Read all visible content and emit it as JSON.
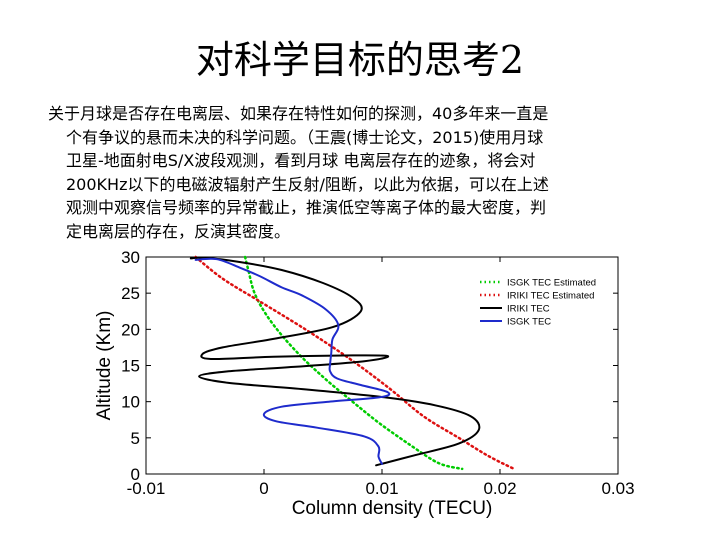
{
  "slide": {
    "title": "对科学目标的思考2",
    "paragraph_lines": [
      "关于月球是否存在电离层、如果存在特性如何的探测，40多年来一直是",
      "个有争议的悬而未决的科学问题。（王震(博士论文，2015)使用月球",
      "卫星-地面射电S/X波段观测，看到月球 电离层存在的迹象，将会对",
      "200KHz以下的电磁波辐射产生反射/阻断，以此为依据，可以在上述",
      "观测中观察信号频率的异常截止，推演低空等离子体的最大密度，判",
      "定电离层的存在，反演其密度。"
    ]
  },
  "chart_data": {
    "type": "line",
    "xlabel": "Column density (TECU)",
    "ylabel": "Altitude (Km)",
    "xlim": [
      -0.01,
      0.03
    ],
    "ylim": [
      0,
      30
    ],
    "xticks": [
      "-0.01",
      "0",
      "0.01",
      "0.02",
      "0.03"
    ],
    "yticks": [
      "0",
      "5",
      "10",
      "15",
      "20",
      "25",
      "30"
    ],
    "legend_position": "top-right",
    "series": [
      {
        "name": "ISGK TEC Estimated",
        "color": "#00cc00",
        "style": "dotted",
        "points": [
          [
            -0.0016,
            30
          ],
          [
            -0.0013,
            28
          ],
          [
            -0.0008,
            25
          ],
          [
            0.0002,
            22
          ],
          [
            0.0016,
            19
          ],
          [
            0.0033,
            16
          ],
          [
            0.0053,
            13
          ],
          [
            0.0075,
            10
          ],
          [
            0.0098,
            7
          ],
          [
            0.0124,
            4
          ],
          [
            0.0148,
            1.5
          ],
          [
            0.0168,
            0.7
          ]
        ]
      },
      {
        "name": "IRIKI TEC Estimated",
        "color": "#dd1111",
        "style": "dotted",
        "points": [
          [
            -0.0058,
            30
          ],
          [
            -0.0035,
            27
          ],
          [
            -0.0005,
            24
          ],
          [
            0.0035,
            20
          ],
          [
            0.0072,
            16
          ],
          [
            0.0105,
            12
          ],
          [
            0.0135,
            8
          ],
          [
            0.0165,
            5
          ],
          [
            0.019,
            2.5
          ],
          [
            0.0212,
            0.7
          ]
        ]
      },
      {
        "name": "IRIKI TEC",
        "color": "#000000",
        "style": "solid",
        "points": [
          [
            -0.0062,
            29.8
          ],
          [
            -0.005,
            29.9
          ],
          [
            -0.002,
            29.3
          ],
          [
            0.0015,
            28.2
          ],
          [
            0.005,
            26.4
          ],
          [
            0.0075,
            24.4
          ],
          [
            0.0082,
            22.5
          ],
          [
            0.0058,
            20.3
          ],
          [
            0.0005,
            18.6
          ],
          [
            -0.0035,
            17.5
          ],
          [
            -0.0052,
            16.6
          ],
          [
            -0.0045,
            15.9
          ],
          [
            0.0008,
            16.2
          ],
          [
            0.0075,
            16.4
          ],
          [
            0.0105,
            16.3
          ],
          [
            0.0085,
            15.6
          ],
          [
            0.0025,
            14.8
          ],
          [
            -0.003,
            14.2
          ],
          [
            -0.0055,
            13.5
          ],
          [
            -0.003,
            12.6
          ],
          [
            0.0035,
            11.7
          ],
          [
            0.0102,
            10.6
          ],
          [
            0.0145,
            9.5
          ],
          [
            0.0175,
            8.0
          ],
          [
            0.0182,
            6.1
          ],
          [
            0.0165,
            4.2
          ],
          [
            0.0128,
            2.6
          ],
          [
            0.0095,
            1.2
          ]
        ]
      },
      {
        "name": "ISGK TEC",
        "color": "#1e2bcc",
        "style": "solid",
        "points": [
          [
            -0.0058,
            29.6
          ],
          [
            -0.004,
            29.7
          ],
          [
            -0.002,
            28.5
          ],
          [
            -0.0003,
            27.3
          ],
          [
            0.0015,
            25.8
          ],
          [
            0.0032,
            24.7
          ],
          [
            0.0052,
            22.8
          ],
          [
            0.0063,
            20.6
          ],
          [
            0.0058,
            18.6
          ],
          [
            0.0057,
            16.8
          ],
          [
            0.0056,
            15.2
          ],
          [
            0.0056,
            14.2
          ],
          [
            0.0062,
            13.2
          ],
          [
            0.0082,
            12.3
          ],
          [
            0.0105,
            11.3
          ],
          [
            0.0098,
            10.6
          ],
          [
            0.0055,
            10.0
          ],
          [
            0.0015,
            9.3
          ],
          [
            0.0,
            8.3
          ],
          [
            0.001,
            7.3
          ],
          [
            0.0045,
            6.4
          ],
          [
            0.0085,
            5.2
          ],
          [
            0.0097,
            3.8
          ],
          [
            0.0097,
            2.4
          ],
          [
            0.01,
            1.4
          ]
        ]
      }
    ]
  }
}
